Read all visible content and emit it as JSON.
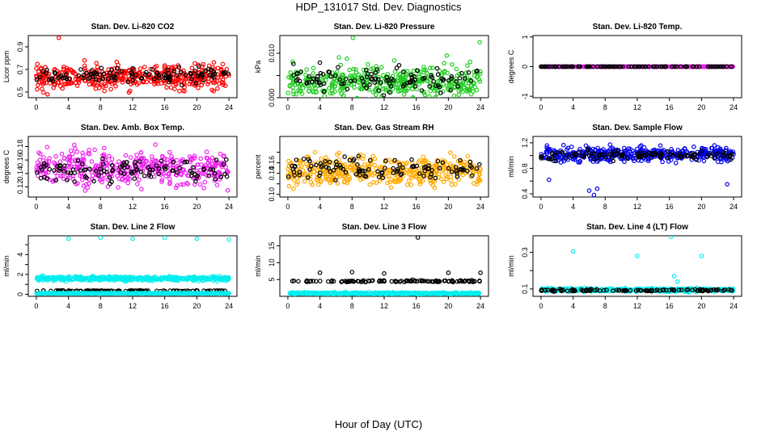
{
  "title": "HDP_131017  Std. Dev. Diagnostics",
  "xlabel": "Hour of Day (UTC)",
  "colors": {
    "red": "#ff0000",
    "green": "#22cc22",
    "magenta": "#ee22ee",
    "orange": "#ffaa00",
    "blue": "#0000ee",
    "cyan": "#00eeee",
    "black": "#000000"
  },
  "chart_data": [
    {
      "type": "scatter",
      "title": "Stan. Dev. Li-820 CO2",
      "ylabel": "Licor ppm",
      "xlim": [
        -1,
        25
      ],
      "ylim": [
        0.45,
        1.0
      ],
      "xticks": [
        0,
        4,
        8,
        12,
        16,
        20,
        24
      ],
      "yticks": [
        0.5,
        0.7,
        0.9
      ],
      "series": [
        {
          "color": "red",
          "center": 0.63,
          "spread": 0.07,
          "extremes": [
            [
              2.8,
              0.98
            ],
            [
              1.4,
              0.48
            ],
            [
              6.0,
              0.78
            ]
          ]
        },
        {
          "color": "black",
          "center": 0.65,
          "spread": 0.05
        }
      ]
    },
    {
      "type": "scatter",
      "title": "Stan. Dev. Li-820 Pressure",
      "ylabel": "kPa",
      "xlim": [
        -1,
        25
      ],
      "ylim": [
        0.0,
        0.014
      ],
      "xticks": [
        0,
        4,
        8,
        12,
        16,
        20,
        24
      ],
      "yticks": [
        0.0,
        0.005,
        0.01
      ],
      "ytick_labels": [
        "0.000",
        "",
        "0.010"
      ],
      "series": [
        {
          "color": "green",
          "center": 0.0035,
          "spread": 0.0025,
          "extremes": [
            [
              8.1,
              0.0135
            ],
            [
              23.9,
              0.0125
            ],
            [
              19.8,
              0.0095
            ]
          ]
        },
        {
          "color": "black",
          "center": 0.004,
          "spread": 0.002
        }
      ]
    },
    {
      "type": "scatter",
      "title": "Stan. Dev. Li-820 Temp.",
      "ylabel": "degrees C",
      "xlim": [
        -1,
        25
      ],
      "ylim": [
        -1.05,
        1.05
      ],
      "xticks": [
        0,
        4,
        8,
        12,
        16,
        20,
        24
      ],
      "yticks": [
        -1.0,
        0.0,
        1.0
      ],
      "series": [
        {
          "color": "magenta",
          "center": 0.0,
          "spread": 0.0
        },
        {
          "color": "black",
          "center": 0.0,
          "spread": 0.0
        }
      ]
    },
    {
      "type": "scatter",
      "title": "Stan. Dev. Amb. Box Temp.",
      "ylabel": "degrees C",
      "xlim": [
        -1,
        25
      ],
      "ylim": [
        0.105,
        0.195
      ],
      "xticks": [
        0,
        4,
        8,
        12,
        16,
        20,
        24
      ],
      "yticks": [
        0.12,
        0.14,
        0.16,
        0.18
      ],
      "series": [
        {
          "color": "magenta",
          "center": 0.148,
          "spread": 0.018
        },
        {
          "color": "black",
          "center": 0.145,
          "spread": 0.012
        }
      ]
    },
    {
      "type": "scatter",
      "title": "Stan. Dev. Gas Stream RH",
      "ylabel": "percent",
      "xlim": [
        -1,
        25
      ],
      "ylim": [
        0.095,
        0.21
      ],
      "xticks": [
        0,
        4,
        8,
        12,
        16,
        20,
        24
      ],
      "yticks": [
        0.1,
        0.12,
        0.14,
        0.16,
        0.18
      ],
      "ytick_labels": [
        "0.10",
        "",
        "0.14",
        "0.16",
        ""
      ],
      "series": [
        {
          "color": "orange",
          "center": 0.145,
          "spread": 0.02
        },
        {
          "color": "black",
          "center": 0.148,
          "spread": 0.014
        }
      ]
    },
    {
      "type": "scatter",
      "title": "Stan. Dev. Sample Flow",
      "ylabel": "ml/min",
      "xlim": [
        -1,
        25
      ],
      "ylim": [
        0.35,
        1.3
      ],
      "xticks": [
        0,
        4,
        8,
        12,
        16,
        20,
        24
      ],
      "yticks": [
        0.4,
        0.6,
        0.8,
        1.0,
        1.2
      ],
      "ytick_labels": [
        "0.4",
        "",
        "0.8",
        "",
        "1.2"
      ],
      "series": [
        {
          "color": "blue",
          "center": 1.02,
          "spread": 0.08,
          "extremes": [
            [
              6.0,
              0.45
            ],
            [
              6.6,
              0.38
            ],
            [
              7.0,
              0.48
            ],
            [
              1.0,
              0.62
            ],
            [
              23.2,
              0.55
            ]
          ]
        },
        {
          "color": "black",
          "center": 1.0,
          "spread": 0.05
        }
      ]
    },
    {
      "type": "scatter",
      "title": "Stan. Dev. Line 2 Flow",
      "ylabel": "ml/min",
      "xlim": [
        -1,
        25
      ],
      "ylim": [
        -0.2,
        5.9
      ],
      "xticks": [
        0,
        4,
        8,
        12,
        16,
        20,
        24
      ],
      "yticks": [
        0,
        1,
        2,
        3,
        4,
        5
      ],
      "ytick_labels": [
        "0",
        "",
        "2",
        "",
        "4",
        ""
      ],
      "series": [
        {
          "color": "cyan",
          "center": 1.6,
          "spread": 0.15,
          "extremes": [
            [
              4,
              5.6
            ],
            [
              8,
              5.7
            ],
            [
              12,
              5.6
            ],
            [
              16,
              5.7
            ],
            [
              20,
              5.6
            ],
            [
              24,
              5.5
            ]
          ]
        },
        {
          "color": "black",
          "center": 0.35,
          "spread": 0.03
        },
        {
          "color": "cyan",
          "center": 0.1,
          "spread": 0.02
        }
      ]
    },
    {
      "type": "scatter",
      "title": "Stan. Dev. Line 3 Flow",
      "ylabel": "ml/min",
      "xlim": [
        -1,
        25
      ],
      "ylim": [
        0,
        18
      ],
      "xticks": [
        0,
        4,
        8,
        12,
        16,
        20,
        24
      ],
      "yticks": [
        5,
        10,
        15
      ],
      "series": [
        {
          "color": "black",
          "center": 4.5,
          "spread": 0.2,
          "extremes": [
            [
              4,
              7
            ],
            [
              8,
              7.2
            ],
            [
              12,
              6.8
            ],
            [
              16.2,
              17.5
            ],
            [
              20,
              7
            ],
            [
              24,
              7
            ]
          ]
        },
        {
          "color": "cyan",
          "center": 0.9,
          "spread": 0.2
        }
      ]
    },
    {
      "type": "scatter",
      "title": "Stan. Dev. Line 4 (LT) Flow",
      "ylabel": "ml/min",
      "xlim": [
        -1,
        25
      ],
      "ylim": [
        0.06,
        0.39
      ],
      "xticks": [
        0,
        4,
        8,
        12,
        16,
        20,
        24
      ],
      "yticks": [
        0.1,
        0.2,
        0.3
      ],
      "ytick_labels": [
        "0.1",
        "",
        "0.3"
      ],
      "series": [
        {
          "color": "cyan",
          "center": 0.095,
          "spread": 0.006,
          "extremes": [
            [
              4,
              0.305
            ],
            [
              12,
              0.28
            ],
            [
              16.2,
              0.385
            ],
            [
              16.6,
              0.17
            ],
            [
              20,
              0.28
            ],
            [
              17,
              0.14
            ]
          ]
        },
        {
          "color": "black",
          "center": 0.093,
          "spread": 0.004
        }
      ]
    }
  ]
}
